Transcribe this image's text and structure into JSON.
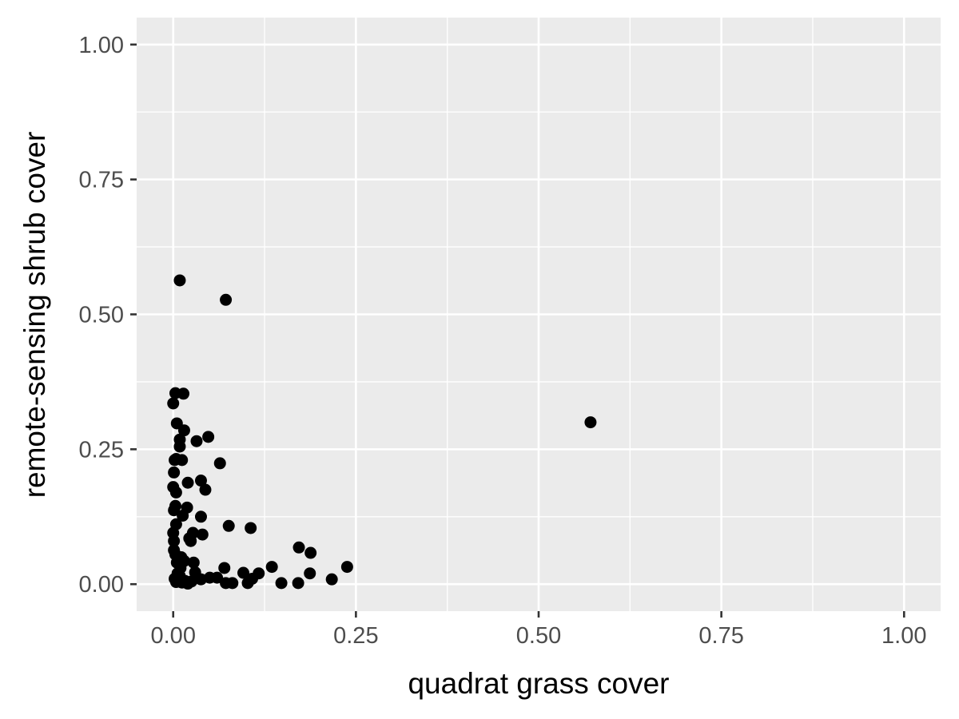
{
  "chart_data": {
    "type": "scatter",
    "title": "",
    "xlabel": "quadrat grass cover",
    "ylabel": "remote-sensing shrub cover",
    "xlim": [
      -0.05,
      1.05
    ],
    "ylim": [
      -0.05,
      1.05
    ],
    "x_ticks": [
      0,
      0.25,
      0.5,
      0.75,
      1
    ],
    "y_ticks": [
      0,
      0.25,
      0.5,
      0.75,
      1
    ],
    "x_tick_labels": [
      "0.00",
      "0.25",
      "0.50",
      "0.75",
      "1.00"
    ],
    "y_tick_labels": [
      "0.00",
      "0.25",
      "0.50",
      "0.75",
      "1.00"
    ],
    "grid": true,
    "background": "#EBEBEB",
    "grid_color": "#FFFFFF",
    "point_color": "#000000",
    "legend": "none",
    "series": [
      {
        "x": [
          0.009,
          0.072,
          0.571,
          0.003,
          0.014,
          0,
          0.005,
          0.015,
          0.048,
          0.009,
          0.032,
          0.009,
          0.004,
          0.002,
          0.012,
          0.064,
          0.001,
          0.038,
          0.02,
          0.044,
          0,
          0.004,
          0.003,
          0.019,
          0.001,
          0.013,
          0.038,
          0.004,
          0.027,
          0.022,
          0.04,
          0.076,
          0.106,
          0,
          0.001,
          0.024,
          0.172,
          0.001,
          0.188,
          0.003,
          0.011,
          0.015,
          0.005,
          0.028,
          0.238,
          0.135,
          0.07,
          0.01,
          0.03,
          0.096,
          0.117,
          0.187,
          0.05,
          0.009,
          0.031,
          0.06,
          0.108,
          0.217,
          0.002,
          0.008,
          0.016,
          0.025,
          0.072,
          0.081,
          0.102,
          0.148,
          0.171,
          0.02,
          0.004,
          0.012,
          0.038,
          0.006
        ],
        "y": [
          0.563,
          0.527,
          0.3,
          0.354,
          0.353,
          0.335,
          0.298,
          0.285,
          0.273,
          0.268,
          0.265,
          0.255,
          0.232,
          0.23,
          0.23,
          0.224,
          0.207,
          0.192,
          0.188,
          0.175,
          0.18,
          0.17,
          0.145,
          0.142,
          0.137,
          0.127,
          0.125,
          0.111,
          0.095,
          0.085,
          0.092,
          0.108,
          0.104,
          0.095,
          0.08,
          0.08,
          0.068,
          0.063,
          0.058,
          0.055,
          0.05,
          0.043,
          0.04,
          0.04,
          0.032,
          0.032,
          0.03,
          0.03,
          0.022,
          0.021,
          0.02,
          0.02,
          0.012,
          0.015,
          0.012,
          0.012,
          0.01,
          0.009,
          0.01,
          0.008,
          0.006,
          0.005,
          0.002,
          0.002,
          0.002,
          0.002,
          0.002,
          0.001,
          0.004,
          0.003,
          0.009,
          0.02
        ]
      }
    ]
  }
}
